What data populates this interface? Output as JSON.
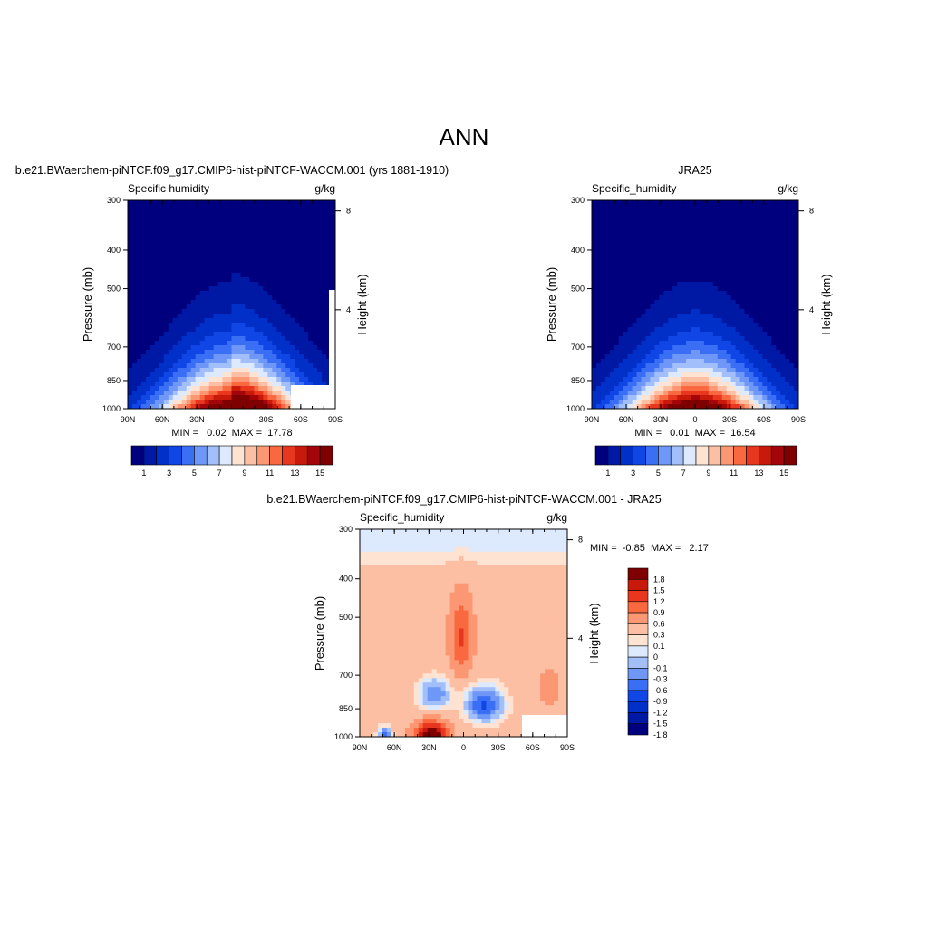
{
  "page": {
    "title": "ANN"
  },
  "colors": {
    "model_scale": [
      "#00007f",
      "#0019a5",
      "#0030c8",
      "#1046e6",
      "#3a6ef5",
      "#6e97f7",
      "#a3bff9",
      "#ddeafd",
      "#fee3d2",
      "#fdbfa3",
      "#fc9774",
      "#f9683f",
      "#e9361f",
      "#c71a0b",
      "#a3050a",
      "#7f0000"
    ],
    "diff_scale": [
      "#00007f",
      "#0019a5",
      "#0030c8",
      "#1046e6",
      "#3a6ef5",
      "#6e97f7",
      "#a3bff9",
      "#ddeafd",
      "#fee3d2",
      "#fdbfa3",
      "#fc9774",
      "#f9683f",
      "#e9361f",
      "#c71a0b",
      "#7f0000"
    ]
  },
  "chart_data": [
    {
      "type": "heatmap",
      "panel_title": "b.e21.BWaerchem-piNTCF.f09_g17.CMIP6-hist-piNTCF-WACCM.001 (yrs 1881-1910)",
      "left_label": "Specific humidity",
      "right_label": "g/kg",
      "ylabel": "Pressure (mb)",
      "ylabel_right": "Height (km)",
      "x_ticks": [
        "90N",
        "60N",
        "30N",
        "0",
        "30S",
        "60S",
        "90S"
      ],
      "y_ticks": [
        "300",
        "400",
        "500",
        "700",
        "850",
        "1000"
      ],
      "height_ticks": [
        "8",
        "4"
      ],
      "stats": "MIN =   0.02  MAX =  17.78",
      "min": 0.02,
      "max": 17.78,
      "peak_lat": 0,
      "peak_value": 17.78,
      "colorbar_labels": [
        "1",
        "3",
        "5",
        "7",
        "9",
        "11",
        "13",
        "15"
      ]
    },
    {
      "type": "heatmap",
      "panel_title": "JRA25",
      "left_label": "Specific_humidity",
      "right_label": "g/kg",
      "ylabel": "Pressure (mb)",
      "ylabel_right": "Height (km)",
      "x_ticks": [
        "90N",
        "60N",
        "30N",
        "0",
        "30S",
        "60S",
        "90S"
      ],
      "y_ticks": [
        "300",
        "400",
        "500",
        "700",
        "850",
        "1000"
      ],
      "height_ticks": [
        "8",
        "4"
      ],
      "stats": "MIN =   0.01  MAX =  16.54",
      "min": 0.01,
      "max": 16.54,
      "peak_lat": 0,
      "peak_value": 16.54,
      "colorbar_labels": [
        "1",
        "3",
        "5",
        "7",
        "9",
        "11",
        "13",
        "15"
      ]
    },
    {
      "type": "heatmap",
      "panel_title": "b.e21.BWaerchem-piNTCF.f09_g17.CMIP6-hist-piNTCF-WACCM.001 - JRA25",
      "left_label": "Specific_humidity",
      "right_label": "g/kg",
      "ylabel": "Pressure (mb)",
      "ylabel_right": "Height (km)",
      "x_ticks": [
        "90N",
        "60N",
        "30N",
        "0",
        "30S",
        "60S",
        "90S"
      ],
      "y_ticks": [
        "300",
        "400",
        "500",
        "700",
        "850",
        "1000"
      ],
      "height_ticks": [
        "8",
        "4"
      ],
      "stats": "MIN =  -0.85  MAX =   2.17",
      "min": -0.85,
      "max": 2.17,
      "colorbar_labels": [
        "1.8",
        "1.5",
        "1.2",
        "0.9",
        "0.6",
        "0.3",
        "0.1",
        "0",
        "-0.1",
        "-0.3",
        "-0.6",
        "-0.9",
        "-1.2",
        "-1.5",
        "-1.8"
      ]
    }
  ]
}
